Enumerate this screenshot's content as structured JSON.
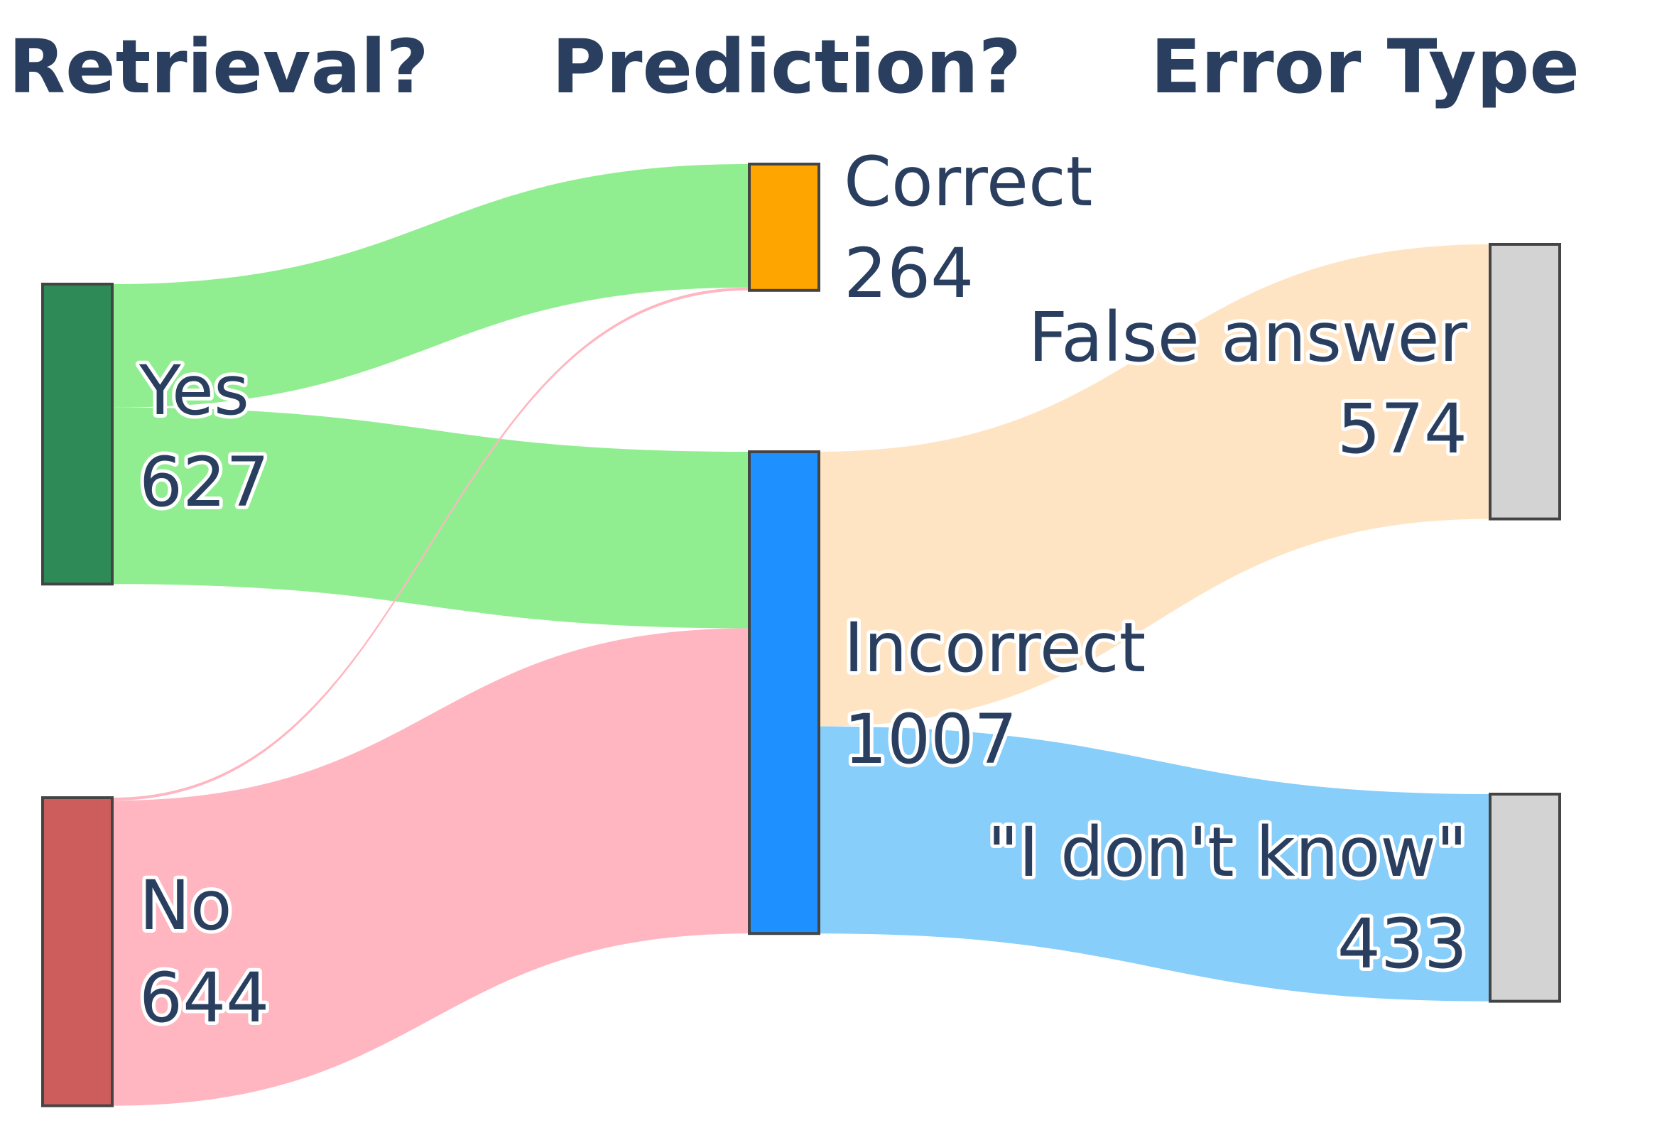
{
  "headers": {
    "col1": "Retrieval?",
    "col2": "Prediction?",
    "col3": "Error Type"
  },
  "nodes": [
    {
      "id": "yes",
      "label": "Yes",
      "value": "627",
      "color": "#2e8b57"
    },
    {
      "id": "no",
      "label": "No",
      "value": "644",
      "color": "#cd5c5c"
    },
    {
      "id": "correct",
      "label": "Correct",
      "value": "264",
      "color": "#ffa500"
    },
    {
      "id": "incorrect",
      "label": "Incorrect",
      "value": "1007",
      "color": "#1e90ff"
    },
    {
      "id": "false",
      "label": "False answer",
      "value": "574",
      "color": "#d3d3d3"
    },
    {
      "id": "idk",
      "label": "\"I don't know\"",
      "value": "433",
      "color": "#d3d3d3"
    }
  ],
  "links": [
    {
      "source": "yes",
      "target": "correct",
      "value": 258,
      "color": "#90ee90"
    },
    {
      "source": "yes",
      "target": "incorrect",
      "value": 369,
      "color": "#90ee90"
    },
    {
      "source": "no",
      "target": "correct",
      "value": 6,
      "color": "#ffb6c1"
    },
    {
      "source": "no",
      "target": "incorrect",
      "value": 638,
      "color": "#ffb6c1"
    },
    {
      "source": "incorrect",
      "target": "false",
      "value": 574,
      "color": "#ffe4c4"
    },
    {
      "source": "incorrect",
      "target": "idk",
      "value": 433,
      "color": "#87cefa"
    }
  ]
}
